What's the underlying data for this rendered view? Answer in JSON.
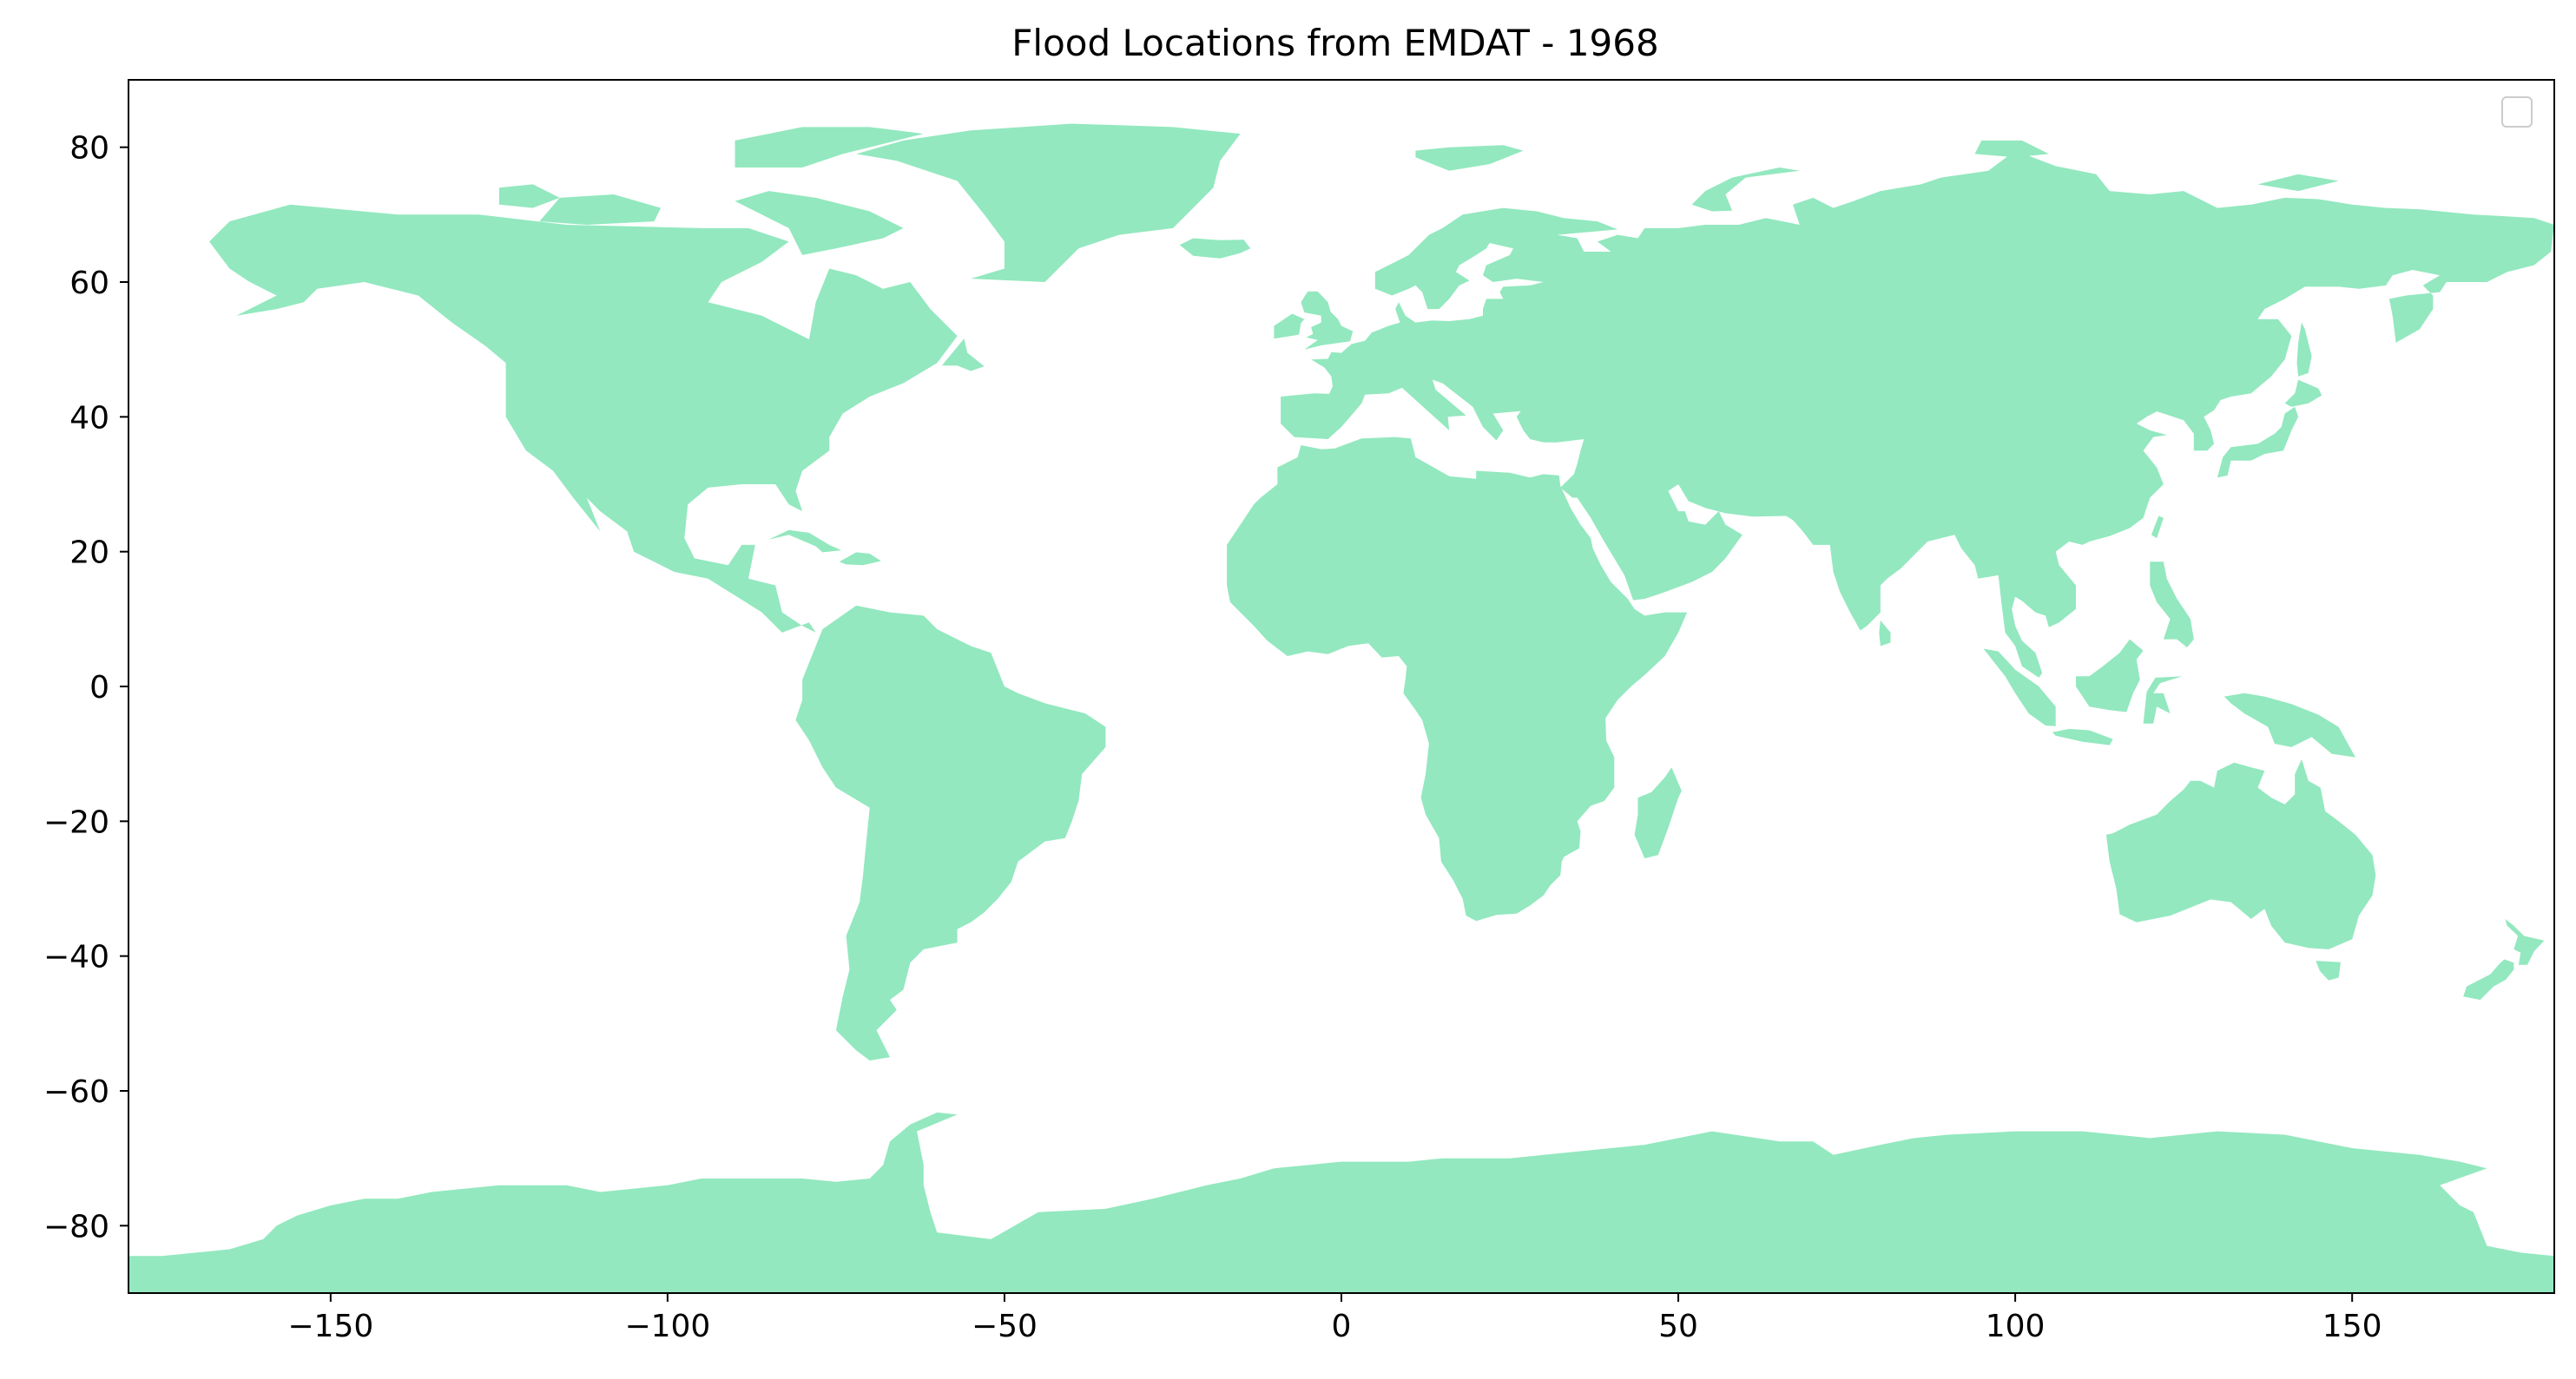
{
  "chart_data": {
    "type": "scatter",
    "title": "Flood Locations from EMDAT - 1968",
    "xlabel": "",
    "ylabel": "",
    "xlim": [
      -180,
      180
    ],
    "ylim": [
      -90,
      90
    ],
    "xticks": [
      -150,
      -100,
      -50,
      0,
      50,
      100,
      150
    ],
    "yticks": [
      -80,
      -60,
      -40,
      -20,
      0,
      20,
      40,
      60,
      80
    ],
    "grid": false,
    "legend": {
      "placement": "top-right",
      "entries": []
    },
    "basemap": "world land masses",
    "series": []
  },
  "colors": {
    "land": "#93e8bf",
    "frame": "#000000",
    "background": "#ffffff",
    "legend_border": "#cccccc"
  }
}
